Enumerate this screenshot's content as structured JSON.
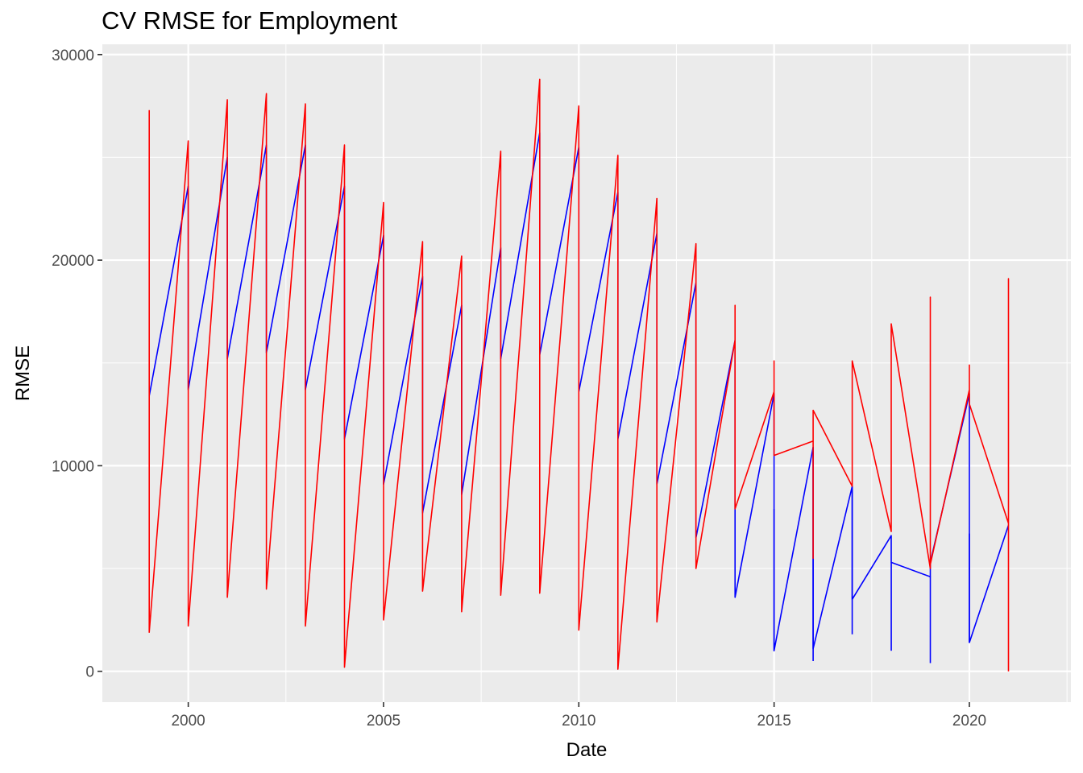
{
  "chart_data": {
    "type": "line",
    "title": "CV RMSE for Employment",
    "xlabel": "Date",
    "ylabel": "RMSE",
    "xlim": [
      1997.8,
      2022.6
    ],
    "ylim": [
      -1500,
      30500
    ],
    "x_ticks": [
      2000,
      2005,
      2010,
      2015,
      2020
    ],
    "y_ticks": [
      0,
      10000,
      20000,
      30000
    ],
    "x_tick_labels": [
      "2000",
      "2005",
      "2010",
      "2015",
      "2020"
    ],
    "y_tick_labels": [
      "0",
      "10000",
      "20000",
      "30000"
    ],
    "grid": true,
    "legend": "none",
    "colors": {
      "panel": "#ebebeb",
      "grid": "#ffffff",
      "blue": "#0000ff",
      "red": "#ff0000"
    },
    "series": [
      {
        "color": "#0000ff",
        "points": [
          [
            1999,
            13400
          ],
          [
            2000,
            23600
          ],
          [
            2000,
            13700
          ],
          [
            2001,
            25000
          ],
          [
            2001,
            15200
          ],
          [
            2002,
            25600
          ],
          [
            2002,
            15500
          ],
          [
            2003,
            25600
          ],
          [
            2003,
            13700
          ],
          [
            2004,
            23600
          ],
          [
            2004,
            11300
          ],
          [
            2005,
            21200
          ],
          [
            2005,
            9100
          ],
          [
            2006,
            19200
          ],
          [
            2006,
            7700
          ],
          [
            2007,
            17800
          ],
          [
            2007,
            8600
          ],
          [
            2008,
            20600
          ],
          [
            2008,
            15200
          ],
          [
            2009,
            26200
          ],
          [
            2009,
            15400
          ],
          [
            2010,
            25500
          ],
          [
            2010,
            13600
          ],
          [
            2011,
            23300
          ],
          [
            2011,
            11300
          ],
          [
            2012,
            21300
          ],
          [
            2012,
            9100
          ],
          [
            2013,
            18900
          ],
          [
            2013,
            6500
          ],
          [
            2014,
            16100
          ],
          [
            2014,
            7900
          ],
          [
            2014,
            3600
          ],
          [
            2015,
            13500
          ],
          [
            2015,
            7900
          ],
          [
            2015,
            1000
          ],
          [
            2016,
            10900
          ],
          [
            2016,
            5600
          ],
          [
            2016,
            1100
          ],
          [
            2017,
            9000
          ],
          [
            2017,
            3500
          ],
          [
            2018,
            6600
          ],
          [
            2018,
            5300
          ],
          [
            2019,
            4600
          ],
          [
            2019,
            5300
          ],
          [
            2020,
            13500
          ],
          [
            2020,
            6700
          ],
          [
            2020,
            1400
          ],
          [
            2021,
            7100
          ]
        ],
        "spikes": [
          [
            2016,
            500,
            10900
          ],
          [
            2017,
            1800,
            9000
          ],
          [
            2018,
            1000,
            5300
          ],
          [
            2019,
            400,
            4600
          ],
          [
            2020,
            1400,
            6700
          ],
          [
            2015,
            1000,
            7900
          ]
        ]
      },
      {
        "color": "#ff0000",
        "points": [
          [
            1999,
            27300
          ],
          [
            1999,
            1900
          ],
          [
            2000,
            25800
          ],
          [
            2000,
            2200
          ],
          [
            2001,
            27800
          ],
          [
            2001,
            3600
          ],
          [
            2002,
            28100
          ],
          [
            2002,
            4000
          ],
          [
            2003,
            27600
          ],
          [
            2003,
            2200
          ],
          [
            2004,
            25600
          ],
          [
            2004,
            200
          ],
          [
            2005,
            22800
          ],
          [
            2005,
            2500
          ],
          [
            2006,
            20900
          ],
          [
            2006,
            3900
          ],
          [
            2007,
            20200
          ],
          [
            2007,
            2900
          ],
          [
            2008,
            25300
          ],
          [
            2008,
            3700
          ],
          [
            2009,
            28800
          ],
          [
            2009,
            3800
          ],
          [
            2010,
            27500
          ],
          [
            2010,
            2000
          ],
          [
            2011,
            25100
          ],
          [
            2011,
            100
          ],
          [
            2012,
            23000
          ],
          [
            2012,
            2400
          ],
          [
            2013,
            20800
          ],
          [
            2013,
            5000
          ],
          [
            2014,
            16100
          ],
          [
            2014,
            17800
          ],
          [
            2014,
            7900
          ],
          [
            2015,
            13600
          ],
          [
            2015,
            15100
          ],
          [
            2015,
            10500
          ],
          [
            2016,
            11200
          ],
          [
            2016,
            12700
          ],
          [
            2016,
            5500
          ],
          [
            2016,
            12700
          ],
          [
            2017,
            9000
          ],
          [
            2017,
            15100
          ],
          [
            2018,
            6800
          ],
          [
            2018,
            16900
          ],
          [
            2019,
            5000
          ],
          [
            2019,
            18200
          ],
          [
            2019,
            5200
          ],
          [
            2020,
            13700
          ],
          [
            2020,
            14900
          ],
          [
            2020,
            13000
          ],
          [
            2021,
            7200
          ],
          [
            2021,
            19100
          ],
          [
            2021,
            0
          ]
        ]
      }
    ]
  }
}
